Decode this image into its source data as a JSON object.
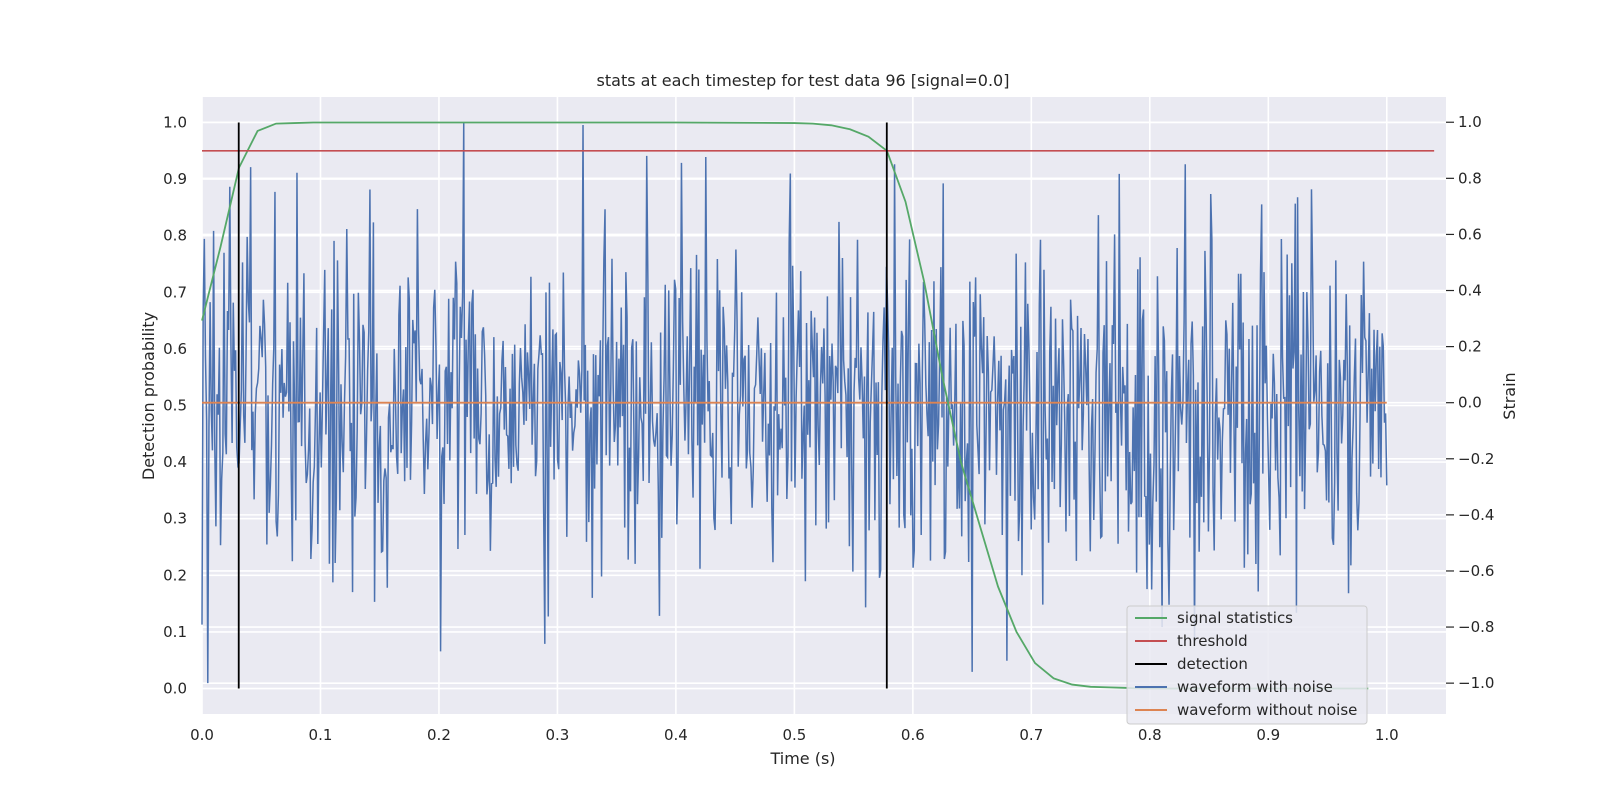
{
  "chart_data": {
    "type": "line",
    "title": "stats at each timestep for test data 96 [signal=0.0]",
    "xlabel": "Time (s)",
    "ylabel": "Detection probability",
    "ylabel_right": "Strain",
    "xlim": [
      0.0,
      1.05
    ],
    "ylim": [
      -0.045,
      1.045
    ],
    "ylim_right": [
      -1.11,
      1.09
    ],
    "xticks": [
      "0.0",
      "0.1",
      "0.2",
      "0.3",
      "0.4",
      "0.5",
      "0.6",
      "0.7",
      "0.8",
      "0.9",
      "1.0"
    ],
    "yticks": [
      "0.0",
      "0.1",
      "0.2",
      "0.3",
      "0.4",
      "0.5",
      "0.6",
      "0.7",
      "0.8",
      "0.9",
      "1.0"
    ],
    "yticks_right": [
      "−1.0",
      "−0.8",
      "−0.6",
      "−0.4",
      "−0.2",
      "0.0",
      "0.2",
      "0.4",
      "0.6",
      "0.8",
      "1.0"
    ],
    "grid": true,
    "legend_position": "lower-right",
    "legend": [
      "signal statistics",
      "threshold",
      "detection",
      "waveform with noise",
      "waveform without noise"
    ],
    "colors": {
      "signal_statistics": "#55a868",
      "threshold": "#c44e52",
      "detection": "#000000",
      "waveform_noise": "#4c72b0",
      "waveform_clean": "#dd8452"
    },
    "signal_statistics": {
      "x": [
        0.0,
        0.0156,
        0.0312,
        0.0469,
        0.0625,
        0.0781,
        0.0938,
        0.1094,
        0.125,
        0.2,
        0.3,
        0.4,
        0.5,
        0.5156,
        0.5312,
        0.5469,
        0.5625,
        0.5781,
        0.5938,
        0.6094,
        0.625,
        0.6406,
        0.6562,
        0.6719,
        0.6875,
        0.7031,
        0.7188,
        0.7344,
        0.75,
        0.7656,
        0.7812,
        0.7969,
        0.8125,
        0.9,
        0.9531,
        0.9844
      ],
      "y": [
        0.65,
        0.78,
        0.92,
        0.985,
        0.998,
        0.999,
        1.0,
        1.0,
        1.0,
        1.0,
        1.0,
        1.0,
        0.999,
        0.998,
        0.995,
        0.988,
        0.975,
        0.95,
        0.86,
        0.72,
        0.55,
        0.4,
        0.29,
        0.18,
        0.1,
        0.045,
        0.018,
        0.007,
        0.003,
        0.002,
        0.001,
        0.0,
        0.0,
        0.0,
        0.0,
        0.0
      ]
    },
    "threshold": {
      "y": 0.95,
      "x_range": [
        0.0,
        1.04
      ]
    },
    "detections": [
      0.031,
      0.578
    ],
    "waveform_without_noise": {
      "y": 0.0,
      "x_range": [
        0.0,
        1.0
      ]
    },
    "waveform_with_noise": {
      "x_range": [
        0.0,
        1.0
      ],
      "n_points": 1024,
      "approx_std": 0.3,
      "range": [
        -1.0,
        1.0
      ],
      "peaks": [
        {
          "x": 0.005,
          "y": -1.0
        },
        {
          "x": 0.023,
          "y": 0.77
        },
        {
          "x": 0.041,
          "y": 0.84
        },
        {
          "x": 0.08,
          "y": 0.82
        },
        {
          "x": 0.142,
          "y": 0.76
        },
        {
          "x": 0.146,
          "y": -0.71
        },
        {
          "x": 0.182,
          "y": 0.69
        },
        {
          "x": 0.221,
          "y": 1.0
        },
        {
          "x": 0.289,
          "y": -0.86
        },
        {
          "x": 0.322,
          "y": 0.99
        },
        {
          "x": 0.375,
          "y": 0.88
        },
        {
          "x": 0.386,
          "y": -0.76
        },
        {
          "x": 0.56,
          "y": -0.73
        },
        {
          "x": 0.585,
          "y": 0.85
        },
        {
          "x": 0.65,
          "y": -0.96
        },
        {
          "x": 0.71,
          "y": -0.72
        },
        {
          "x": 0.77,
          "y": 0.6
        },
        {
          "x": 0.81,
          "y": -0.8
        },
        {
          "x": 0.83,
          "y": 0.85
        },
        {
          "x": 0.923,
          "y": 0.71
        },
        {
          "x": 0.97,
          "y": -0.58
        }
      ]
    }
  }
}
